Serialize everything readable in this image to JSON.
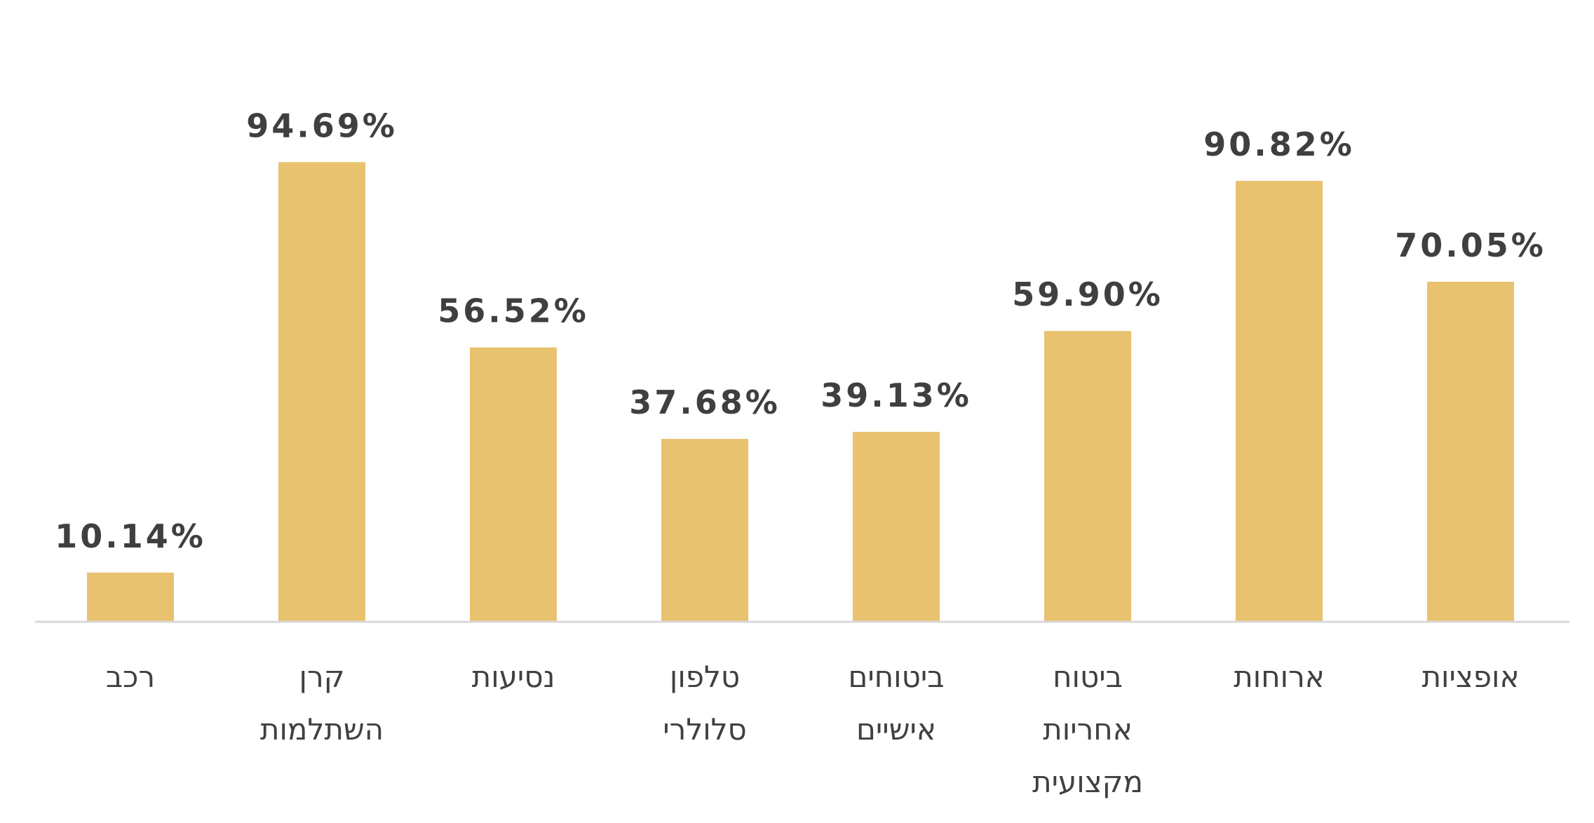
{
  "chart_data": {
    "type": "bar",
    "categories": [
      [
        "רכב"
      ],
      [
        "קרן",
        "השתלמות"
      ],
      [
        "נסיעות"
      ],
      [
        "טלפון",
        "סלולרי"
      ],
      [
        "ביטוחים",
        "אישיים"
      ],
      [
        "ביטוח",
        "אחריות",
        "מקצועית"
      ],
      [
        "ארוחות"
      ],
      [
        "אופציות"
      ]
    ],
    "values": [
      10.14,
      94.69,
      56.52,
      37.68,
      39.13,
      59.9,
      90.82,
      70.05
    ],
    "value_labels": [
      "10.14%",
      "94.69%",
      "56.52%",
      "37.68%",
      "39.13%",
      "59.90%",
      "90.82%",
      "70.05%"
    ],
    "ylim": [
      0,
      100
    ],
    "grid": false,
    "legend": "none",
    "colors": {
      "bar": "#e8c26e",
      "label": "#3f3f3f",
      "axis": "#d9d9d9"
    }
  }
}
